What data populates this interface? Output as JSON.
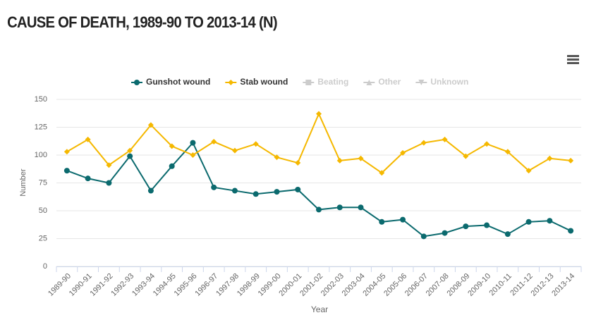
{
  "chart_data": {
    "type": "line",
    "title": "CAUSE OF DEATH, 1989-90 TO 2013-14 (N)",
    "x_label": "Year",
    "y_label": "Number",
    "categories": [
      "1989-90",
      "1990-91",
      "1991-92",
      "1992-93",
      "1993-94",
      "1994-95",
      "1995-96",
      "1996-97",
      "1997-98",
      "1998-99",
      "1999-00",
      "2000-01",
      "2001-02",
      "2002-03",
      "2003-04",
      "2004-05",
      "2005-06",
      "2006-07",
      "2007-08",
      "2008-09",
      "2009-10",
      "2010-11",
      "2011-12",
      "2012-13",
      "2013-14"
    ],
    "series": [
      {
        "name": "Gunshot wound",
        "color": "#0b6a6e",
        "marker": "circle",
        "visible": true,
        "values": [
          86,
          79,
          75,
          99,
          68,
          90,
          111,
          71,
          68,
          65,
          67,
          69,
          51,
          53,
          53,
          40,
          42,
          27,
          30,
          36,
          37,
          29,
          40,
          41,
          32
        ]
      },
      {
        "name": "Stab wound",
        "color": "#f5b800",
        "marker": "diamond",
        "visible": true,
        "values": [
          103,
          114,
          91,
          104,
          127,
          108,
          100,
          112,
          104,
          110,
          98,
          93,
          137,
          95,
          97,
          84,
          102,
          111,
          114,
          99,
          110,
          103,
          86,
          97,
          95
        ]
      },
      {
        "name": "Beating",
        "color": "#cccccc",
        "marker": "square",
        "visible": false,
        "values": [
          null,
          null,
          null,
          null,
          null,
          null,
          null,
          null,
          null,
          null,
          null,
          null,
          null,
          null,
          null,
          null,
          null,
          null,
          null,
          null,
          null,
          null,
          null,
          null,
          null
        ]
      },
      {
        "name": "Other",
        "color": "#cccccc",
        "marker": "triangle",
        "visible": false,
        "values": [
          null,
          null,
          null,
          null,
          null,
          null,
          null,
          null,
          null,
          null,
          null,
          null,
          null,
          null,
          null,
          null,
          null,
          null,
          null,
          null,
          null,
          null,
          null,
          null,
          null
        ]
      },
      {
        "name": "Unknown",
        "color": "#cccccc",
        "marker": "triangle-down",
        "visible": false,
        "values": [
          null,
          null,
          null,
          null,
          null,
          null,
          null,
          null,
          null,
          null,
          null,
          null,
          null,
          null,
          null,
          null,
          null,
          null,
          null,
          null,
          null,
          null,
          null,
          null,
          null
        ]
      }
    ],
    "ylim": [
      0,
      150
    ],
    "yticks": [
      0,
      25,
      50,
      75,
      100,
      125,
      150
    ],
    "grid": true,
    "legend": "top"
  }
}
